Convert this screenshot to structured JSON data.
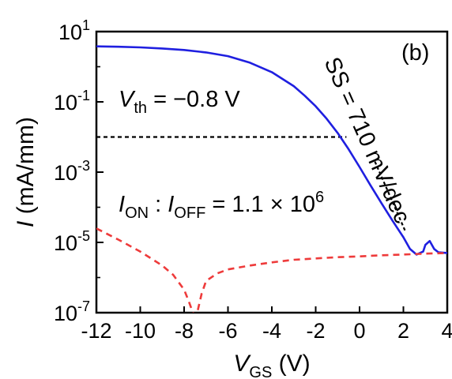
{
  "chart_data": {
    "type": "line",
    "panel_label": "(b)",
    "xlabel": {
      "main": "V",
      "sub": "GS",
      "unit": " (V)"
    },
    "ylabel": {
      "main": "I",
      "unit": " (mA/mm)"
    },
    "xlim": [
      -12,
      4
    ],
    "ylim_log10": [
      -7,
      1
    ],
    "yscale": "log",
    "x_ticks": [
      "-12",
      "-10",
      "-8",
      "-6",
      "-4",
      "-2",
      "0",
      "2",
      "4"
    ],
    "y_ticks": [
      {
        "base": "10",
        "exp": "1"
      },
      {
        "base": "10",
        "exp": "-1"
      },
      {
        "base": "10",
        "exp": "-3"
      },
      {
        "base": "10",
        "exp": "-5"
      },
      {
        "base": "10",
        "exp": "-7"
      }
    ],
    "annotations": {
      "vth": {
        "main": "V",
        "sub": "th",
        "rest": " = −0.8 V"
      },
      "ion_ioff": {
        "i1": "I",
        "s1": "ON",
        "sep": " : ",
        "i2": "I",
        "s2": "OFF",
        "rest": " = 1.1 × 10",
        "exp": "6"
      },
      "ss": "SS = 710 mV/dec"
    },
    "threshold_line": {
      "y": 0.01,
      "x_start": -12,
      "x_end": -0.6,
      "color": "#000000"
    },
    "ss_fit_line": {
      "x": [
        0.7,
        2.1
      ],
      "y": [
        0.002,
        2e-05
      ]
    },
    "series": [
      {
        "color": "#1f1fe0",
        "style": "solid",
        "x": [
          -12,
          -11,
          -10,
          -9,
          -8,
          -7,
          -6,
          -5,
          -4,
          -3,
          -2.5,
          -2,
          -1.5,
          -1,
          -0.5,
          0,
          0.5,
          1,
          1.5,
          2,
          2.3,
          2.6,
          2.9,
          3.0,
          3.2,
          3.4,
          3.6,
          4.0
        ],
        "y": [
          3.8,
          3.7,
          3.55,
          3.3,
          3.0,
          2.55,
          2.0,
          1.3,
          0.7,
          0.28,
          0.15,
          0.075,
          0.033,
          0.013,
          0.0045,
          0.0014,
          0.00042,
          0.00013,
          4.2e-05,
          1.4e-05,
          6.5e-06,
          4.5e-06,
          5.5e-06,
          8.5e-06,
          1.1e-05,
          6.5e-06,
          5.2e-06,
          5e-06
        ]
      },
      {
        "color": "#ee3b3b",
        "style": "dashed",
        "x": [
          -12,
          -11,
          -10,
          -9,
          -8.5,
          -8,
          -7.8,
          -7.6,
          -7.5,
          -7.4,
          -7.2,
          -7,
          -6.5,
          -6,
          -5,
          -4,
          -3,
          -2,
          -1,
          0,
          1,
          2,
          3,
          4
        ],
        "y": [
          2.5e-05,
          1.2e-05,
          5.5e-06,
          2.2e-06,
          1.2e-06,
          4.5e-07,
          2.2e-07,
          1e-07,
          8e-08,
          1e-07,
          3.5e-07,
          8e-07,
          1.3e-06,
          1.7e-06,
          2.2e-06,
          2.7e-06,
          3.2e-06,
          3.5e-06,
          3.8e-06,
          4e-06,
          4.3e-06,
          4.5e-06,
          4.8e-06,
          5e-06
        ]
      }
    ]
  }
}
